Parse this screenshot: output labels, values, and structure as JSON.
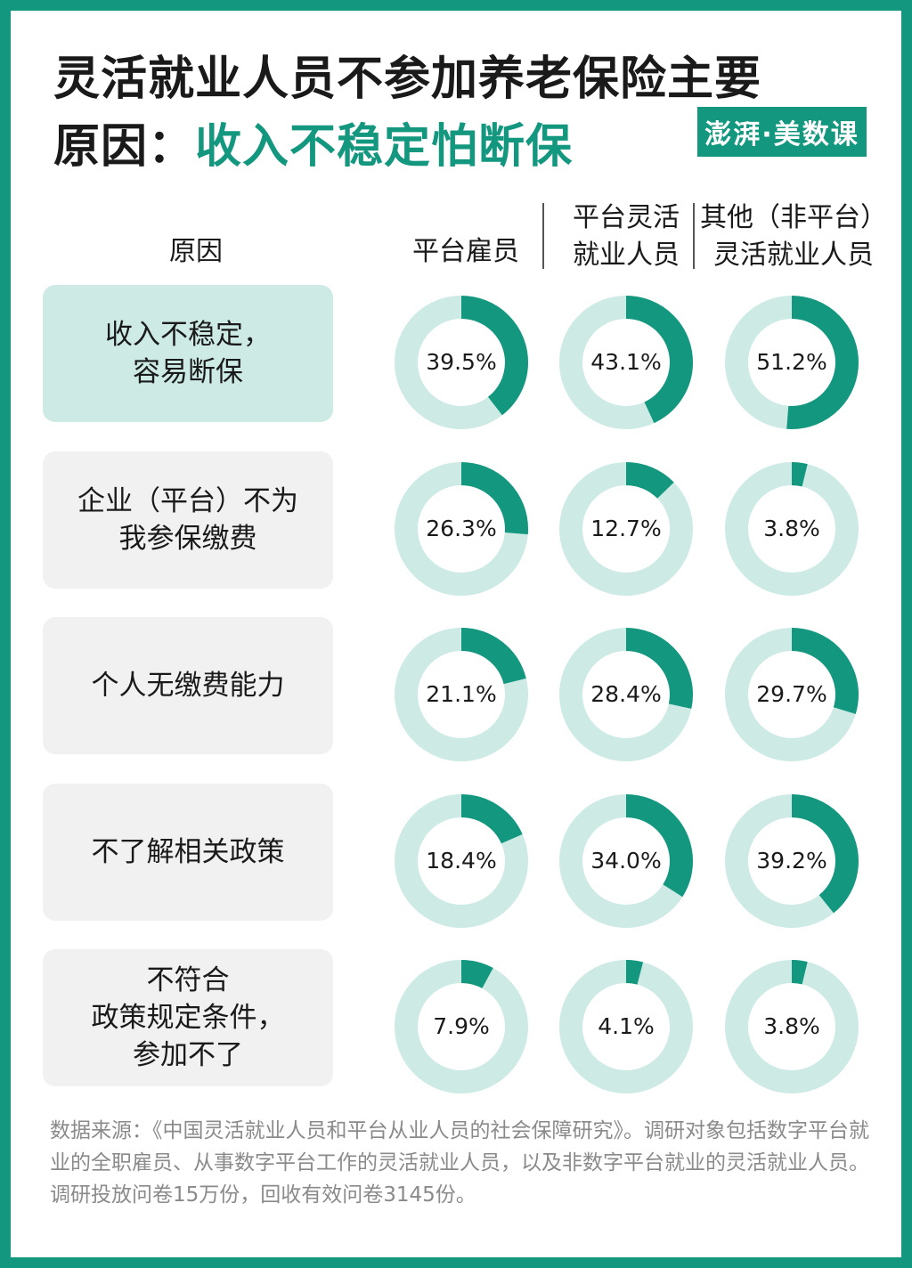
{
  "title": {
    "line1": "灵活就业人员不参加养老保险主要",
    "line2_prefix": "原因：",
    "line2_accent": "收入不稳定怕断保"
  },
  "logo": "澎湃·美数课",
  "colors": {
    "accent": "#13977f",
    "ring_bg": "#cdeae5",
    "row_highlight": "#cdeae5",
    "row_default": "#f1f1f1"
  },
  "chart_data": {
    "type": "donut-grid",
    "row_header": "原因",
    "columns": [
      "平台雇员",
      "平台灵活\n就业人员",
      "其他（非平台）\n灵活就业人员"
    ],
    "rows": [
      {
        "label": "收入不稳定，\n容易断保",
        "values": [
          39.5,
          43.1,
          51.2
        ],
        "labels": [
          "39.5%",
          "43.1%",
          "51.2%"
        ]
      },
      {
        "label": "企业（平台）不为\n我参保缴费",
        "values": [
          26.3,
          12.7,
          3.8
        ],
        "labels": [
          "26.3%",
          "12.7%",
          "3.8%"
        ]
      },
      {
        "label": "个人无缴费能力",
        "values": [
          21.1,
          28.4,
          29.7
        ],
        "labels": [
          "21.1%",
          "28.4%",
          "29.7%"
        ]
      },
      {
        "label": "不了解相关政策",
        "values": [
          18.4,
          34.0,
          39.2
        ],
        "labels": [
          "18.4%",
          "34.0%",
          "39.2%"
        ]
      },
      {
        "label": "不符合\n政策规定条件，\n参加不了",
        "values": [
          7.9,
          4.1,
          3.8
        ],
        "labels": [
          "7.9%",
          "4.1%",
          "3.8%"
        ]
      }
    ]
  },
  "source": "数据来源：《中国灵活就业人员和平台从业人员的社会保障研究》。调研对象包括数字平台就业的全职雇员、从事数字平台工作的灵活就业人员，以及非数字平台就业的灵活就业人员。调研投放问卷15万份，回收有效问卷3145份。"
}
